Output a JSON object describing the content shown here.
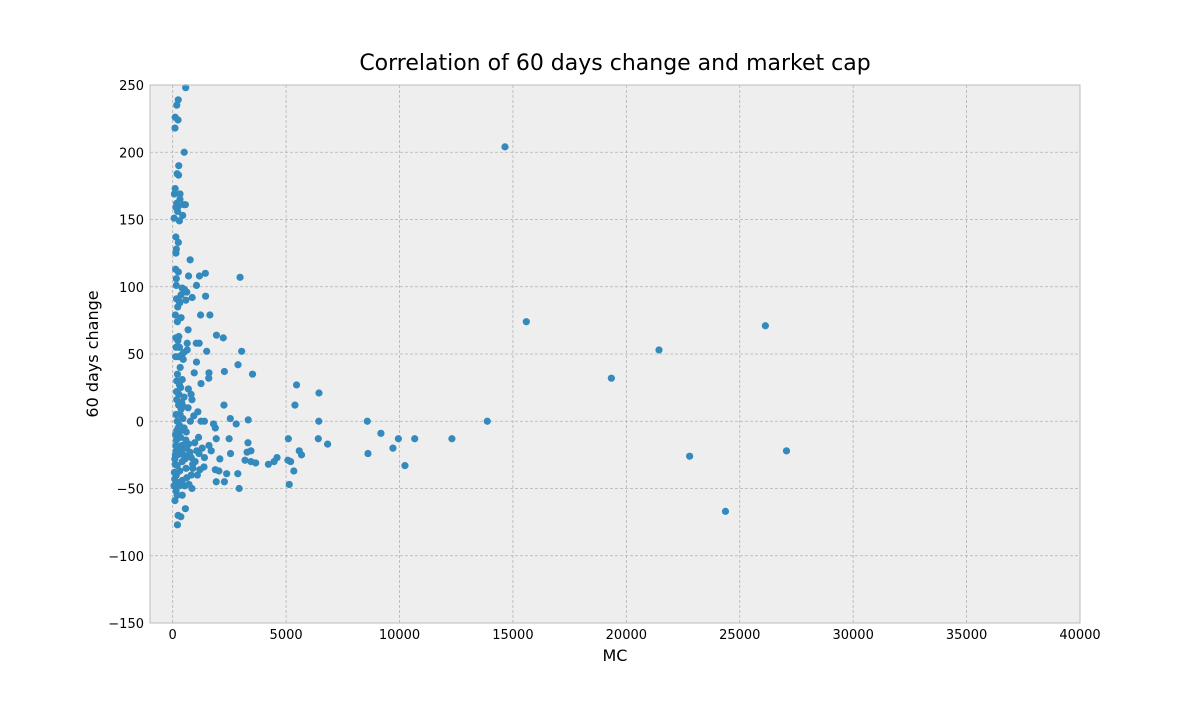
{
  "chart_data": {
    "type": "scatter",
    "title": "Correlation of 60 days change and market cap",
    "xlabel": "MC",
    "ylabel": "60 days change",
    "xlim": [
      -1000,
      40000
    ],
    "ylim": [
      -150,
      250
    ],
    "xticks": [
      0,
      5000,
      10000,
      15000,
      20000,
      25000,
      30000,
      35000,
      40000
    ],
    "yticks": [
      -150,
      -100,
      -50,
      0,
      50,
      100,
      150,
      200,
      250
    ],
    "xtick_labels": [
      "0",
      "5000",
      "10000",
      "15000",
      "20000",
      "25000",
      "30000",
      "35000",
      "40000"
    ],
    "ytick_labels": [
      "−150",
      "−100",
      "−50",
      "0",
      "50",
      "100",
      "150",
      "200",
      "250"
    ],
    "grid": true,
    "point_color": "#348ABD",
    "background_color": "#EEEEEE",
    "grid_color": "#B2B2B2",
    "series": [
      {
        "points": [
          [
            573,
            248
          ],
          [
            245,
            239
          ],
          [
            180,
            235
          ],
          [
            236,
            224
          ],
          [
            110,
            226
          ],
          [
            101,
            218
          ],
          [
            509,
            200
          ],
          [
            14650,
            204
          ],
          [
            267,
            190
          ],
          [
            198,
            184
          ],
          [
            260,
            183
          ],
          [
            110,
            173
          ],
          [
            76,
            169
          ],
          [
            324,
            169
          ],
          [
            175,
            162
          ],
          [
            250,
            160
          ],
          [
            320,
            165
          ],
          [
            492,
            161
          ],
          [
            560,
            161
          ],
          [
            143,
            159
          ],
          [
            220,
            156
          ],
          [
            66,
            151
          ],
          [
            296,
            149
          ],
          [
            442,
            153
          ],
          [
            140,
            137
          ],
          [
            250,
            133
          ],
          [
            162,
            128
          ],
          [
            143,
            125
          ],
          [
            2970,
            107
          ],
          [
            1180,
            108
          ],
          [
            700,
            108
          ],
          [
            1440,
            110
          ],
          [
            130,
            113
          ],
          [
            250,
            111
          ],
          [
            160,
            106
          ],
          [
            770,
            120
          ],
          [
            420,
            99
          ],
          [
            520,
            98
          ],
          [
            620,
            96
          ],
          [
            370,
            94
          ],
          [
            255,
            90
          ],
          [
            171,
            91
          ],
          [
            1050,
            101
          ],
          [
            160,
            101
          ],
          [
            310,
            88
          ],
          [
            580,
            90
          ],
          [
            860,
            92
          ],
          [
            1450,
            93
          ],
          [
            222,
            85
          ],
          [
            15590,
            74
          ],
          [
            1230,
            79
          ],
          [
            1640,
            79
          ],
          [
            26130,
            71
          ],
          [
            121,
            79
          ],
          [
            208,
            74
          ],
          [
            370,
            77
          ],
          [
            270,
            63
          ],
          [
            140,
            62
          ],
          [
            680,
            68
          ],
          [
            1040,
            58
          ],
          [
            1170,
            58
          ],
          [
            1930,
            64
          ],
          [
            2230,
            62
          ],
          [
            21440,
            53
          ],
          [
            3040,
            52
          ],
          [
            1500,
            52
          ],
          [
            640,
            58
          ],
          [
            300,
            55
          ],
          [
            480,
            51
          ],
          [
            640,
            53
          ],
          [
            2880,
            42
          ],
          [
            250,
            48
          ],
          [
            380,
            49
          ],
          [
            465,
            46
          ],
          [
            130,
            48
          ],
          [
            1050,
            44
          ],
          [
            950,
            36
          ],
          [
            2280,
            37
          ],
          [
            3520,
            35
          ],
          [
            1600,
            36
          ],
          [
            1590,
            32
          ],
          [
            19340,
            32
          ],
          [
            1250,
            28
          ],
          [
            5460,
            27
          ],
          [
            300,
            27
          ],
          [
            420,
            31
          ],
          [
            350,
            25
          ],
          [
            690,
            24
          ],
          [
            180,
            30
          ],
          [
            6450,
            21
          ],
          [
            500,
            18
          ],
          [
            810,
            20
          ],
          [
            270,
            20
          ],
          [
            180,
            16
          ],
          [
            850,
            16
          ],
          [
            400,
            14
          ],
          [
            5390,
            12
          ],
          [
            2260,
            12
          ],
          [
            1110,
            7
          ],
          [
            680,
            10
          ],
          [
            370,
            9
          ],
          [
            460,
            11
          ],
          [
            150,
            5
          ],
          [
            930,
            4
          ],
          [
            8580,
            0
          ],
          [
            13870,
            0
          ],
          [
            6440,
            0
          ],
          [
            3330,
            1
          ],
          [
            2540,
            2
          ],
          [
            1400,
            0
          ],
          [
            1250,
            0
          ],
          [
            780,
            0
          ],
          [
            2800,
            -2
          ],
          [
            1800,
            -2
          ],
          [
            1880,
            -5
          ],
          [
            300,
            -3
          ],
          [
            200,
            0
          ],
          [
            9180,
            -9
          ],
          [
            10670,
            -13
          ],
          [
            9950,
            -13
          ],
          [
            12310,
            -13
          ],
          [
            6420,
            -13
          ],
          [
            5100,
            -13
          ],
          [
            3320,
            -16
          ],
          [
            6830,
            -17
          ],
          [
            2490,
            -13
          ],
          [
            1920,
            -13
          ],
          [
            1140,
            -12
          ],
          [
            970,
            -16
          ],
          [
            580,
            -14
          ],
          [
            400,
            -18
          ],
          [
            290,
            -20
          ],
          [
            150,
            -22
          ],
          [
            220,
            -25
          ],
          [
            8610,
            -24
          ],
          [
            9710,
            -20
          ],
          [
            5580,
            -22
          ],
          [
            5680,
            -25
          ],
          [
            3450,
            -22
          ],
          [
            3280,
            -23
          ],
          [
            2550,
            -24
          ],
          [
            1400,
            -27
          ],
          [
            1160,
            -24
          ],
          [
            660,
            -26
          ],
          [
            420,
            -30
          ],
          [
            200,
            -33
          ],
          [
            22790,
            -26
          ],
          [
            27060,
            -22
          ],
          [
            10240,
            -33
          ],
          [
            5200,
            -30
          ],
          [
            5080,
            -29
          ],
          [
            4600,
            -27
          ],
          [
            4470,
            -30
          ],
          [
            4220,
            -32
          ],
          [
            3660,
            -31
          ],
          [
            3450,
            -30
          ],
          [
            3190,
            -29
          ],
          [
            2080,
            -28
          ],
          [
            1380,
            -34
          ],
          [
            1200,
            -36
          ],
          [
            890,
            -35
          ],
          [
            590,
            -35
          ],
          [
            310,
            -37
          ],
          [
            160,
            -40
          ],
          [
            5340,
            -37
          ],
          [
            2870,
            -39
          ],
          [
            2380,
            -39
          ],
          [
            2040,
            -37
          ],
          [
            1880,
            -36
          ],
          [
            1090,
            -40
          ],
          [
            820,
            -40
          ],
          [
            620,
            -42
          ],
          [
            420,
            -44
          ],
          [
            160,
            -45
          ],
          [
            1920,
            -45
          ],
          [
            2280,
            -45
          ],
          [
            5140,
            -47
          ],
          [
            2930,
            -50
          ],
          [
            850,
            -50
          ],
          [
            720,
            -47
          ],
          [
            530,
            -48
          ],
          [
            290,
            -48
          ],
          [
            150,
            -52
          ],
          [
            420,
            -55
          ],
          [
            200,
            -55
          ],
          [
            100,
            -59
          ],
          [
            24370,
            -67
          ],
          [
            560,
            -65
          ],
          [
            240,
            -70
          ],
          [
            360,
            -71
          ],
          [
            210,
            -77
          ],
          [
            60,
            -48
          ],
          [
            90,
            -43
          ],
          [
            75,
            -38
          ],
          [
            110,
            -32
          ],
          [
            95,
            -28
          ],
          [
            120,
            -25
          ],
          [
            140,
            -18
          ],
          [
            160,
            -14
          ],
          [
            130,
            -10
          ],
          [
            180,
            -7
          ],
          [
            240,
            -5
          ],
          [
            300,
            -8
          ],
          [
            350,
            -12
          ],
          [
            380,
            -22
          ],
          [
            470,
            -25
          ],
          [
            540,
            -28
          ],
          [
            610,
            -20
          ],
          [
            700,
            -17
          ],
          [
            760,
            -23
          ],
          [
            820,
            -27
          ],
          [
            880,
            -32
          ],
          [
            990,
            -30
          ],
          [
            1060,
            -22
          ],
          [
            1300,
            -20
          ],
          [
            1600,
            -18
          ],
          [
            1700,
            -22
          ],
          [
            600,
            -8
          ],
          [
            500,
            -5
          ],
          [
            450,
            2
          ],
          [
            330,
            5
          ],
          [
            260,
            12
          ],
          [
            170,
            22
          ],
          [
            210,
            35
          ],
          [
            330,
            40
          ],
          [
            150,
            55
          ],
          [
            230,
            60
          ]
        ]
      }
    ]
  }
}
